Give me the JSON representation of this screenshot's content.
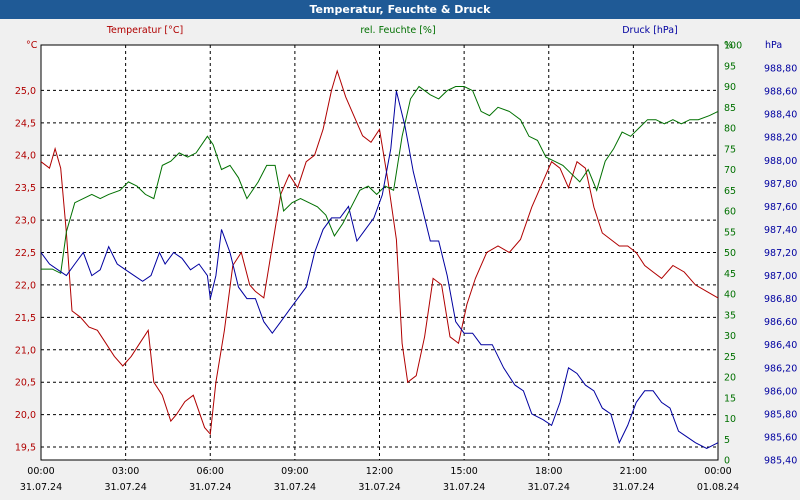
{
  "window": {
    "title": "Temperatur, Feuchte & Druck"
  },
  "chart_data": {
    "type": "line",
    "title": "Temperatur, Feuchte & Druck",
    "legend": [
      "Temperatur [°C]",
      "rel. Feuchte [%]",
      "Druck [hPa]"
    ],
    "colors": {
      "temperature": "#b00000",
      "humidity": "#007000",
      "pressure": "#0000a0",
      "grid": "#000000",
      "background": "#ffffff"
    },
    "x_ticks": [
      {
        "time": "00:00",
        "date": "31.07.24"
      },
      {
        "time": "03:00",
        "date": "31.07.24"
      },
      {
        "time": "06:00",
        "date": "31.07.24"
      },
      {
        "time": "09:00",
        "date": "31.07.24"
      },
      {
        "time": "12:00",
        "date": "31.07.24"
      },
      {
        "time": "15:00",
        "date": "31.07.24"
      },
      {
        "time": "18:00",
        "date": "31.07.24"
      },
      {
        "time": "21:00",
        "date": "31.07.24"
      },
      {
        "time": "00:00",
        "date": "01.08.24"
      }
    ],
    "xlim": [
      0,
      24
    ],
    "axes": {
      "temperature": {
        "unit": "°C",
        "ylim": [
          19.3,
          25.7
        ],
        "ticks": [
          "19,5",
          "20,0",
          "20,5",
          "21,0",
          "21,5",
          "22,0",
          "22,5",
          "23,0",
          "23,5",
          "24,0",
          "24,5",
          "25,0"
        ],
        "tick_values": [
          19.5,
          20,
          20.5,
          21,
          21.5,
          22,
          22.5,
          23,
          23.5,
          24,
          24.5,
          25
        ]
      },
      "humidity": {
        "unit": "%",
        "ylim": [
          0,
          100
        ],
        "ticks": [
          "0",
          "5",
          "10",
          "15",
          "20",
          "25",
          "30",
          "35",
          "40",
          "45",
          "50",
          "55",
          "60",
          "65",
          "70",
          "75",
          "80",
          "85",
          "90",
          "95",
          "100"
        ],
        "tick_values": [
          0,
          5,
          10,
          15,
          20,
          25,
          30,
          35,
          40,
          45,
          50,
          55,
          60,
          65,
          70,
          75,
          80,
          85,
          90,
          95,
          100
        ]
      },
      "pressure": {
        "unit": "hPa",
        "ylim": [
          985.4,
          989.0
        ],
        "ticks": [
          "985,40",
          "985,60",
          "985,80",
          "986,00",
          "986,20",
          "986,40",
          "986,60",
          "986,80",
          "987,00",
          "987,20",
          "987,40",
          "987,60",
          "987,80",
          "988,00",
          "988,20",
          "988,40",
          "988,60",
          "988,80"
        ],
        "tick_values": [
          985.4,
          985.6,
          985.8,
          986.0,
          986.2,
          986.4,
          986.6,
          986.8,
          987.0,
          987.2,
          987.4,
          987.6,
          987.8,
          988.0,
          988.2,
          988.4,
          988.6,
          988.8
        ]
      }
    },
    "series": [
      {
        "name": "Temperatur",
        "axis": "temperature",
        "color": "#b00000",
        "points": [
          [
            0,
            23.9
          ],
          [
            0.3,
            23.8
          ],
          [
            0.5,
            24.1
          ],
          [
            0.7,
            23.8
          ],
          [
            0.9,
            22.8
          ],
          [
            1.1,
            21.6
          ],
          [
            1.4,
            21.5
          ],
          [
            1.7,
            21.35
          ],
          [
            2.0,
            21.3
          ],
          [
            2.3,
            21.1
          ],
          [
            2.6,
            20.9
          ],
          [
            2.9,
            20.75
          ],
          [
            3.2,
            20.9
          ],
          [
            3.5,
            21.1
          ],
          [
            3.8,
            21.3
          ],
          [
            4.0,
            20.5
          ],
          [
            4.3,
            20.3
          ],
          [
            4.6,
            19.9
          ],
          [
            4.8,
            20.0
          ],
          [
            5.1,
            20.2
          ],
          [
            5.4,
            20.3
          ],
          [
            5.8,
            19.8
          ],
          [
            6.0,
            19.7
          ],
          [
            6.2,
            20.5
          ],
          [
            6.5,
            21.3
          ],
          [
            6.8,
            22.3
          ],
          [
            7.1,
            22.5
          ],
          [
            7.4,
            22.0
          ],
          [
            7.6,
            21.9
          ],
          [
            7.9,
            21.8
          ],
          [
            8.2,
            22.6
          ],
          [
            8.5,
            23.4
          ],
          [
            8.8,
            23.7
          ],
          [
            9.1,
            23.5
          ],
          [
            9.4,
            23.9
          ],
          [
            9.7,
            24.0
          ],
          [
            10.0,
            24.4
          ],
          [
            10.3,
            25.0
          ],
          [
            10.5,
            25.3
          ],
          [
            10.8,
            24.9
          ],
          [
            11.1,
            24.6
          ],
          [
            11.4,
            24.3
          ],
          [
            11.7,
            24.2
          ],
          [
            12.0,
            24.4
          ],
          [
            12.3,
            23.6
          ],
          [
            12.6,
            22.7
          ],
          [
            12.8,
            21.1
          ],
          [
            13.0,
            20.5
          ],
          [
            13.3,
            20.6
          ],
          [
            13.6,
            21.2
          ],
          [
            13.9,
            22.1
          ],
          [
            14.2,
            22.0
          ],
          [
            14.5,
            21.2
          ],
          [
            14.8,
            21.1
          ],
          [
            15.1,
            21.7
          ],
          [
            15.4,
            22.1
          ],
          [
            15.8,
            22.5
          ],
          [
            16.2,
            22.6
          ],
          [
            16.6,
            22.5
          ],
          [
            17.0,
            22.7
          ],
          [
            17.4,
            23.2
          ],
          [
            17.8,
            23.6
          ],
          [
            18.1,
            23.9
          ],
          [
            18.4,
            23.8
          ],
          [
            18.7,
            23.5
          ],
          [
            19.0,
            23.9
          ],
          [
            19.3,
            23.8
          ],
          [
            19.6,
            23.2
          ],
          [
            19.9,
            22.8
          ],
          [
            20.2,
            22.7
          ],
          [
            20.5,
            22.6
          ],
          [
            20.8,
            22.6
          ],
          [
            21.1,
            22.5
          ],
          [
            21.4,
            22.3
          ],
          [
            21.7,
            22.2
          ],
          [
            22.0,
            22.1
          ],
          [
            22.4,
            22.3
          ],
          [
            22.8,
            22.2
          ],
          [
            23.2,
            22.0
          ],
          [
            23.6,
            21.9
          ],
          [
            24.0,
            21.8
          ]
        ]
      },
      {
        "name": "rel. Feuchte",
        "axis": "humidity",
        "color": "#007000",
        "points": [
          [
            0,
            46
          ],
          [
            0.4,
            46
          ],
          [
            0.7,
            45
          ],
          [
            0.9,
            55
          ],
          [
            1.2,
            62
          ],
          [
            1.5,
            63
          ],
          [
            1.8,
            64
          ],
          [
            2.1,
            63
          ],
          [
            2.4,
            64
          ],
          [
            2.8,
            65
          ],
          [
            3.1,
            67
          ],
          [
            3.4,
            66
          ],
          [
            3.7,
            64
          ],
          [
            4.0,
            63
          ],
          [
            4.3,
            71
          ],
          [
            4.6,
            72
          ],
          [
            4.9,
            74
          ],
          [
            5.2,
            73
          ],
          [
            5.5,
            74
          ],
          [
            5.9,
            78
          ],
          [
            6.1,
            76
          ],
          [
            6.4,
            70
          ],
          [
            6.7,
            71
          ],
          [
            7.0,
            68
          ],
          [
            7.3,
            63
          ],
          [
            7.7,
            67
          ],
          [
            8.0,
            71
          ],
          [
            8.3,
            71
          ],
          [
            8.6,
            60
          ],
          [
            8.9,
            62
          ],
          [
            9.2,
            63
          ],
          [
            9.5,
            62
          ],
          [
            9.8,
            61
          ],
          [
            10.1,
            59
          ],
          [
            10.4,
            54
          ],
          [
            10.7,
            57
          ],
          [
            11.0,
            61
          ],
          [
            11.3,
            65
          ],
          [
            11.6,
            66
          ],
          [
            11.9,
            64
          ],
          [
            12.2,
            66
          ],
          [
            12.5,
            65
          ],
          [
            12.8,
            78
          ],
          [
            13.1,
            87
          ],
          [
            13.4,
            90
          ],
          [
            13.8,
            88
          ],
          [
            14.1,
            87
          ],
          [
            14.4,
            89
          ],
          [
            14.7,
            90
          ],
          [
            15.0,
            90
          ],
          [
            15.3,
            89
          ],
          [
            15.6,
            84
          ],
          [
            15.9,
            83
          ],
          [
            16.2,
            85
          ],
          [
            16.6,
            84
          ],
          [
            17.0,
            82
          ],
          [
            17.3,
            78
          ],
          [
            17.6,
            77
          ],
          [
            17.9,
            73
          ],
          [
            18.2,
            72
          ],
          [
            18.5,
            71
          ],
          [
            18.8,
            69
          ],
          [
            19.1,
            67
          ],
          [
            19.4,
            70
          ],
          [
            19.7,
            65
          ],
          [
            20.0,
            72
          ],
          [
            20.3,
            75
          ],
          [
            20.6,
            79
          ],
          [
            20.9,
            78
          ],
          [
            21.2,
            80
          ],
          [
            21.5,
            82
          ],
          [
            21.8,
            82
          ],
          [
            22.1,
            81
          ],
          [
            22.4,
            82
          ],
          [
            22.7,
            81
          ],
          [
            23.0,
            82
          ],
          [
            23.3,
            82
          ],
          [
            23.7,
            83
          ],
          [
            24.0,
            84
          ]
        ]
      },
      {
        "name": "Druck",
        "axis": "pressure",
        "color": "#0000a0",
        "points": [
          [
            0,
            987.2
          ],
          [
            0.3,
            987.1
          ],
          [
            0.6,
            987.05
          ],
          [
            0.9,
            987.0
          ],
          [
            1.2,
            987.1
          ],
          [
            1.5,
            987.2
          ],
          [
            1.8,
            987.0
          ],
          [
            2.1,
            987.05
          ],
          [
            2.4,
            987.25
          ],
          [
            2.7,
            987.1
          ],
          [
            3.0,
            987.05
          ],
          [
            3.3,
            987.0
          ],
          [
            3.6,
            986.95
          ],
          [
            3.9,
            987.0
          ],
          [
            4.2,
            987.2
          ],
          [
            4.4,
            987.1
          ],
          [
            4.7,
            987.2
          ],
          [
            5.0,
            987.15
          ],
          [
            5.3,
            987.05
          ],
          [
            5.6,
            987.1
          ],
          [
            5.9,
            987.0
          ],
          [
            6.0,
            986.8
          ],
          [
            6.2,
            987.0
          ],
          [
            6.4,
            987.4
          ],
          [
            6.7,
            987.2
          ],
          [
            7.0,
            986.9
          ],
          [
            7.3,
            986.8
          ],
          [
            7.6,
            986.8
          ],
          [
            7.9,
            986.6
          ],
          [
            8.2,
            986.5
          ],
          [
            8.5,
            986.6
          ],
          [
            8.8,
            986.7
          ],
          [
            9.1,
            986.8
          ],
          [
            9.4,
            986.9
          ],
          [
            9.7,
            987.2
          ],
          [
            10.0,
            987.4
          ],
          [
            10.3,
            987.5
          ],
          [
            10.6,
            987.5
          ],
          [
            10.9,
            987.6
          ],
          [
            11.2,
            987.3
          ],
          [
            11.5,
            987.4
          ],
          [
            11.8,
            987.5
          ],
          [
            12.1,
            987.7
          ],
          [
            12.4,
            988.1
          ],
          [
            12.6,
            988.6
          ],
          [
            12.9,
            988.3
          ],
          [
            13.2,
            987.9
          ],
          [
            13.5,
            987.6
          ],
          [
            13.8,
            987.3
          ],
          [
            14.1,
            987.3
          ],
          [
            14.4,
            987.0
          ],
          [
            14.7,
            986.6
          ],
          [
            15.0,
            986.5
          ],
          [
            15.3,
            986.5
          ],
          [
            15.6,
            986.4
          ],
          [
            16.0,
            986.4
          ],
          [
            16.4,
            986.2
          ],
          [
            16.8,
            986.05
          ],
          [
            17.1,
            986.0
          ],
          [
            17.4,
            985.8
          ],
          [
            17.8,
            985.75
          ],
          [
            18.1,
            985.7
          ],
          [
            18.4,
            985.9
          ],
          [
            18.7,
            986.2
          ],
          [
            19.0,
            986.15
          ],
          [
            19.3,
            986.05
          ],
          [
            19.6,
            986.0
          ],
          [
            19.9,
            985.85
          ],
          [
            20.2,
            985.8
          ],
          [
            20.5,
            985.55
          ],
          [
            20.8,
            985.7
          ],
          [
            21.1,
            985.9
          ],
          [
            21.4,
            986.0
          ],
          [
            21.7,
            986.0
          ],
          [
            22.0,
            985.9
          ],
          [
            22.3,
            985.85
          ],
          [
            22.6,
            985.65
          ],
          [
            22.9,
            985.6
          ],
          [
            23.2,
            985.55
          ],
          [
            23.6,
            985.5
          ],
          [
            24.0,
            985.55
          ]
        ]
      }
    ]
  }
}
